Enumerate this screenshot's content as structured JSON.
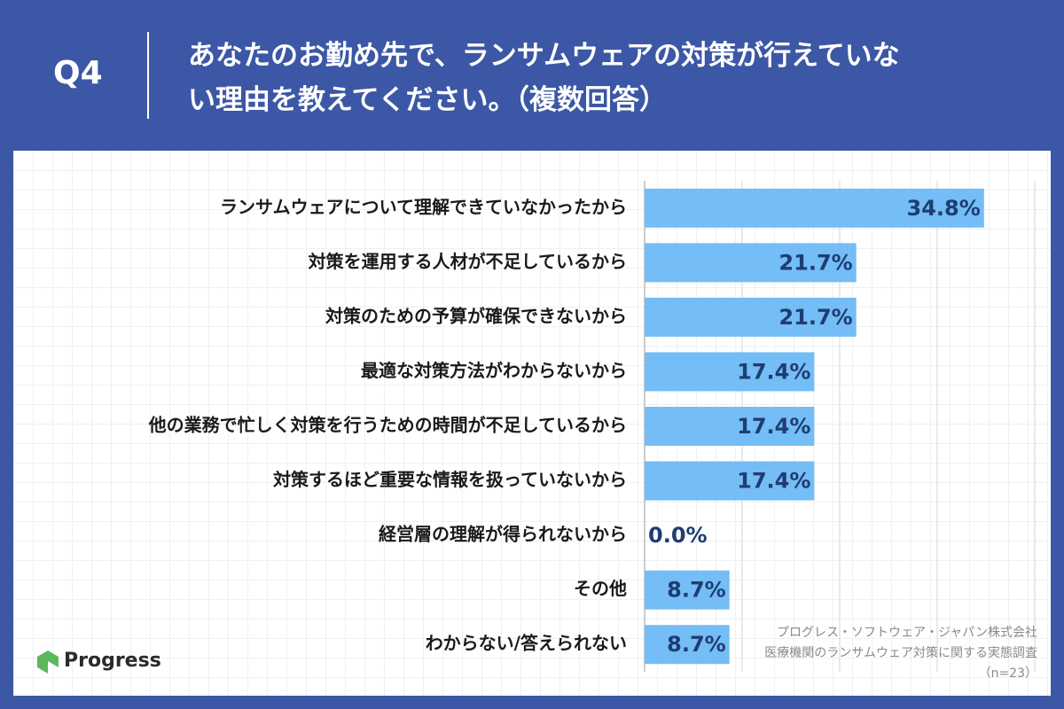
{
  "chart_data": {
    "type": "barh",
    "label": "Q4",
    "title": [
      "あなたのお勤め先で、ランサムウェアの対策が行えていな",
      "い理由を教えてください。（複数回答）"
    ],
    "categories": [
      "ランサムウェアについて理解できていなかったから",
      "対策を運用する人材が不足しているから",
      "対策のための予算が確保できないから",
      "最適な対策方法がわからないから",
      "他の業務で忙しく対策を行うための時間が不足しているから",
      "対策するほど重要な情報を扱っていないから",
      "経営層の理解が得られないから",
      "その他",
      "わからない/答えられない"
    ],
    "values": [
      34.8,
      21.7,
      21.7,
      17.4,
      17.4,
      17.4,
      0.0,
      8.7,
      8.7
    ],
    "value_labels": [
      "34.8%",
      "21.7%",
      "21.7%",
      "17.4%",
      "17.4%",
      "17.4%",
      "0.0%",
      "8.7%",
      "8.7%"
    ],
    "color": "#74bdf6",
    "xlim": [
      0,
      40
    ],
    "xticks": [
      0,
      10,
      20,
      30,
      40
    ],
    "grid": true,
    "source": [
      "プログレス・ソフトウェア・ジャパン株式会社",
      "医療機関のランサムウェア対策に関する実態調査",
      "（n=23）"
    ],
    "logo": "Progress"
  }
}
